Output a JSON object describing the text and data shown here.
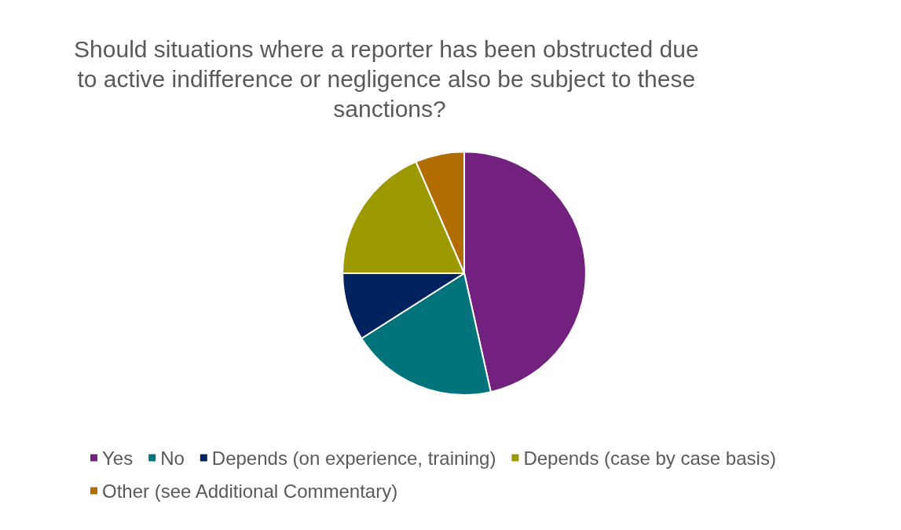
{
  "chart_data": {
    "type": "pie",
    "title": "Should situations where a reporter has been obstructed due to active indifference or negligence also be subject to these sanctions?",
    "categories": [
      "Yes",
      "No",
      "Depends (on experience, training)",
      "Depends (case by case basis)",
      "Other (see Additional Commentary)"
    ],
    "values": [
      46.5,
      19.5,
      9,
      18.5,
      6.5
    ],
    "colors": [
      "#72217f",
      "#00747a",
      "#002360",
      "#9c9a00",
      "#b26d00"
    ],
    "legend": "bottom"
  }
}
